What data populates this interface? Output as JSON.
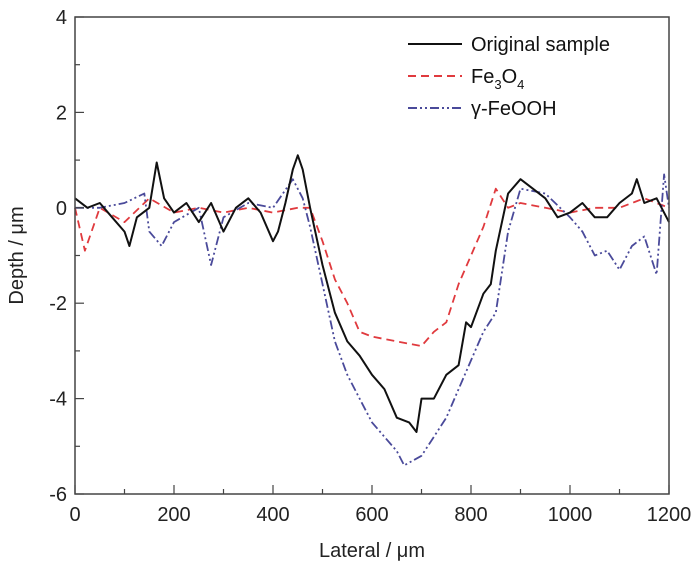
{
  "chart_data": {
    "type": "line",
    "title": "",
    "xlabel": "Lateral / μm",
    "ylabel": "Depth / μm",
    "xlim": [
      0,
      1200
    ],
    "ylim": [
      -6,
      4
    ],
    "xticks": [
      0,
      200,
      400,
      600,
      800,
      1000,
      1200
    ],
    "yticks": [
      -6,
      -4,
      -2,
      0,
      2,
      4
    ],
    "x_minor_step": 100,
    "y_minor_step": 1,
    "grid": false,
    "legend_position": "top-right",
    "series": [
      {
        "name": "Original sample",
        "legend_parts": [
          "Original sample"
        ],
        "color": "#111111",
        "style": "solid",
        "x": [
          0,
          25,
          50,
          75,
          100,
          110,
          125,
          150,
          165,
          180,
          200,
          225,
          250,
          275,
          300,
          325,
          350,
          375,
          400,
          410,
          425,
          440,
          450,
          460,
          475,
          500,
          525,
          550,
          575,
          600,
          625,
          650,
          675,
          690,
          700,
          725,
          750,
          775,
          790,
          800,
          825,
          840,
          850,
          875,
          900,
          925,
          950,
          975,
          1000,
          1025,
          1050,
          1075,
          1100,
          1125,
          1135,
          1150,
          1175,
          1200
        ],
        "y": [
          0.2,
          0,
          0.1,
          -0.2,
          -0.5,
          -0.8,
          -0.2,
          0,
          0.95,
          0.2,
          -0.1,
          0.1,
          -0.3,
          0.1,
          -0.5,
          0,
          0.2,
          -0.1,
          -0.7,
          -0.5,
          0.1,
          0.8,
          1.1,
          0.8,
          0,
          -1.2,
          -2.2,
          -2.8,
          -3.1,
          -3.5,
          -3.8,
          -4.4,
          -4.5,
          -4.7,
          -4.0,
          -4.0,
          -3.5,
          -3.3,
          -2.4,
          -2.5,
          -1.8,
          -1.6,
          -0.9,
          0.3,
          0.6,
          0.4,
          0.2,
          -0.2,
          -0.1,
          0.1,
          -0.2,
          -0.2,
          0.1,
          0.3,
          0.6,
          0.1,
          0.2,
          -0.3
        ]
      },
      {
        "name": "Fe3O4",
        "legend_parts": [
          "Fe",
          "3",
          "O",
          "4"
        ],
        "color": "#e03a3e",
        "style": "dashed",
        "x": [
          0,
          20,
          50,
          100,
          150,
          200,
          250,
          300,
          350,
          400,
          450,
          475,
          500,
          525,
          550,
          575,
          600,
          650,
          700,
          725,
          750,
          775,
          800,
          825,
          850,
          875,
          900,
          950,
          1000,
          1050,
          1100,
          1150,
          1200
        ],
        "y": [
          0,
          -0.9,
          0,
          -0.3,
          0.2,
          -0.1,
          0,
          -0.1,
          0,
          -0.1,
          0,
          0,
          -0.7,
          -1.5,
          -2.0,
          -2.6,
          -2.7,
          -2.8,
          -2.9,
          -2.6,
          -2.4,
          -1.6,
          -1.0,
          -0.4,
          0.4,
          0,
          0.1,
          0,
          -0.1,
          0,
          0,
          0.2,
          0
        ]
      },
      {
        "name": "γ-FeOOH",
        "legend_parts": [
          "γ-FeOOH"
        ],
        "color": "#4a4a9a",
        "style": "dash-dot-dot",
        "x": [
          0,
          50,
          100,
          140,
          150,
          175,
          200,
          250,
          275,
          300,
          350,
          400,
          440,
          460,
          475,
          500,
          525,
          550,
          575,
          600,
          625,
          650,
          665,
          700,
          725,
          750,
          775,
          800,
          825,
          850,
          875,
          900,
          950,
          1000,
          1025,
          1050,
          1075,
          1100,
          1125,
          1150,
          1175,
          1190,
          1200
        ],
        "y": [
          0,
          0,
          0.1,
          0.3,
          -0.5,
          -0.8,
          -0.3,
          0,
          -1.2,
          -0.2,
          0.1,
          0,
          0.6,
          0.2,
          -0.4,
          -1.6,
          -2.8,
          -3.5,
          -4.0,
          -4.5,
          -4.8,
          -5.1,
          -5.4,
          -5.2,
          -4.8,
          -4.4,
          -3.8,
          -3.2,
          -2.6,
          -2.2,
          -0.5,
          0.4,
          0.3,
          -0.2,
          -0.5,
          -1.0,
          -0.9,
          -1.3,
          -0.8,
          -0.6,
          -1.4,
          0.7,
          0
        ]
      }
    ]
  }
}
